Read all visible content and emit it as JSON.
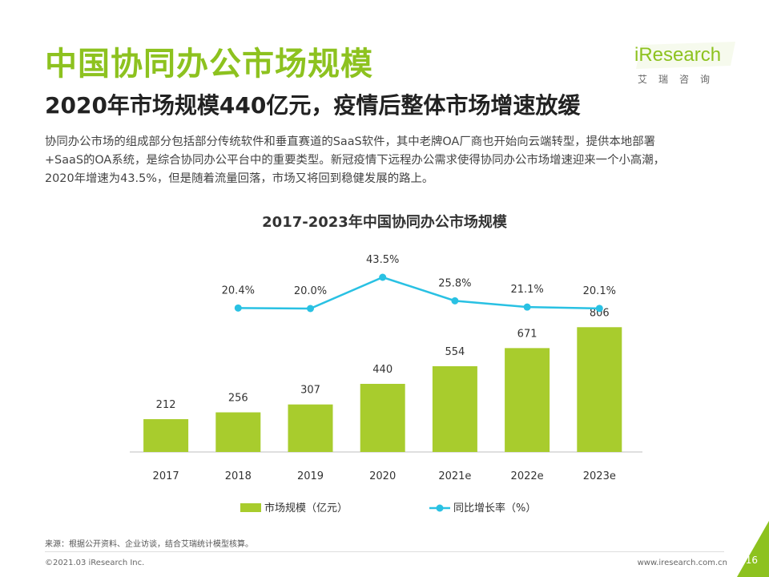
{
  "header": {
    "title": "中国协同办公市场规模",
    "subtitle": "2020年市场规模440亿元，疫情后整体市场增速放缓"
  },
  "description": {
    "lines": [
      "协同办公市场的组成部分包括部分传统软件和垂直赛道的SaaS软件，其中老牌OA厂商也开始向云端转型，提供本地部署",
      "+SaaS的OA系统，是综合协同办公平台中的重要类型。新冠疫情下远程办公需求使得协同办公市场增速迎来一个小高潮，",
      "2020年增速为43.5%，但是随着流量回落，市场又将回到稳健发展的路上。"
    ]
  },
  "logo": {
    "wordmark": "iResearch",
    "subtext": "艾瑞咨询"
  },
  "colors": {
    "brand_green": "#8dc21f",
    "bar_green": "#a8cc2d",
    "line_blue": "#29c1e3"
  },
  "chart_data": {
    "type": "bar",
    "title": "2017-2023年中国协同办公市场规模",
    "categories": [
      "2017",
      "2018",
      "2019",
      "2020",
      "2021e",
      "2022e",
      "2023e"
    ],
    "series": [
      {
        "name": "市场规模（亿元）",
        "type": "bar",
        "values": [
          212,
          256,
          307,
          440,
          554,
          671,
          806
        ],
        "labels": [
          "212",
          "256",
          "307",
          "440",
          "554",
          "671",
          "806"
        ]
      },
      {
        "name": "同比增长率（%）",
        "type": "line",
        "x": [
          "2018",
          "2019",
          "2020",
          "2021e",
          "2022e",
          "2023e"
        ],
        "values": [
          20.4,
          20.0,
          43.5,
          25.8,
          21.1,
          20.1
        ],
        "labels": [
          "20.4%",
          "20.0%",
          "43.5%",
          "25.8%",
          "21.1%",
          "20.1%"
        ]
      }
    ],
    "xlabel": "",
    "ylabel": "",
    "bar_ylim": [
      0,
      1000
    ],
    "line_ylim": [
      10,
      45
    ],
    "legend_position": "bottom",
    "grid": false
  },
  "footer": {
    "source": "来源：根据公开资料、企业访谈，结合艾瑞统计模型核算。",
    "copyright": "©2021.03 iResearch Inc.",
    "website": "www.iresearch.com.cn",
    "page": "16"
  }
}
